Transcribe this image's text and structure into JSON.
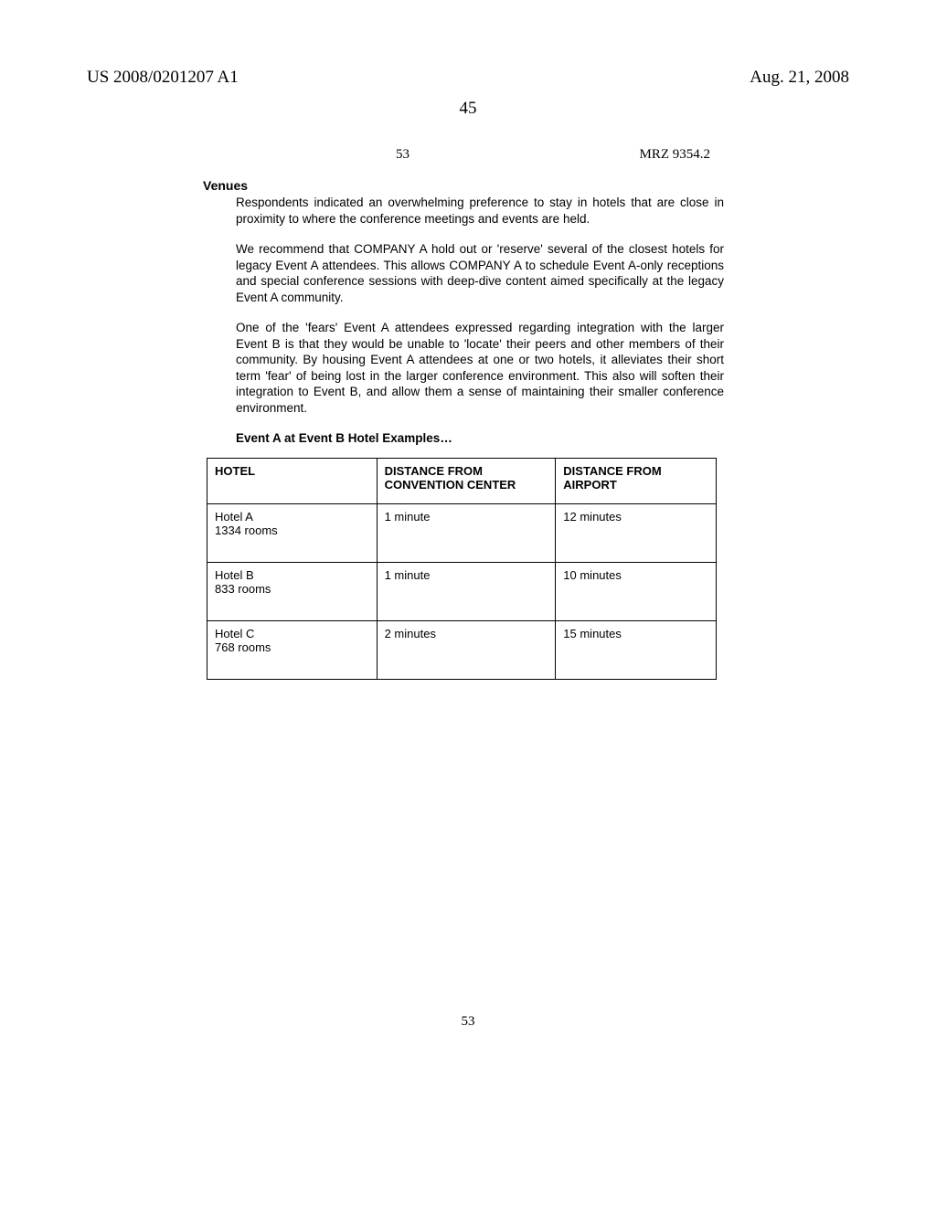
{
  "header": {
    "left": "US 2008/0201207 A1",
    "right": "Aug. 21, 2008",
    "page_top": "45",
    "sub_page": "53",
    "mrz": "MRZ 9354.2",
    "page_bottom": "53"
  },
  "section_title": "Venues",
  "paragraphs": [
    "Respondents indicated an overwhelming preference to stay in hotels that are close in proximity to where the conference meetings and events are held.",
    "We recommend that COMPANY A hold out or 'reserve' several of the closest hotels for legacy Event A attendees.  This allows COMPANY A to schedule Event A-only receptions and special conference sessions with deep-dive content aimed specifically at the legacy Event A community.",
    "One of the 'fears' Event A attendees expressed regarding integration with the larger Event B is that they would be unable to 'locate' their peers and other members of their community.  By housing Event A attendees at one or two hotels, it alleviates their short term 'fear' of being lost in the larger conference environment.  This also will soften their integration to Event B, and allow them a sense of maintaining their smaller conference environment."
  ],
  "table_title": "Event A at Event B Hotel Examples…",
  "table": {
    "columns": [
      "HOTEL",
      "DISTANCE FROM CONVENTION CENTER",
      "DISTANCE FROM AIRPORT"
    ],
    "rows": [
      {
        "hotel_name": "Hotel A",
        "hotel_rooms": "1334 rooms",
        "dist_conv": "1 minute",
        "dist_air": "12 minutes"
      },
      {
        "hotel_name": "Hotel B",
        "hotel_rooms": "833 rooms",
        "dist_conv": "1 minute",
        "dist_air": "10 minutes"
      },
      {
        "hotel_name": "Hotel C",
        "hotel_rooms": "768 rooms",
        "dist_conv": "2 minutes",
        "dist_air": "15 minutes"
      }
    ]
  }
}
